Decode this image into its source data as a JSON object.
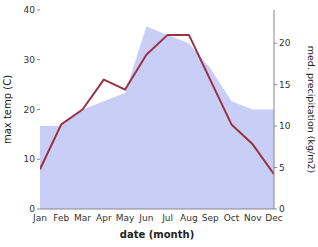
{
  "chart_data": {
    "type": "line",
    "categories": [
      "Jan",
      "Feb",
      "Mar",
      "Apr",
      "May",
      "Jun",
      "Jul",
      "Aug",
      "Sep",
      "Oct",
      "Nov",
      "Dec"
    ],
    "xlabel": "date (month)",
    "ylabel": "max temp (C)",
    "y2label": "med. precipitation (kg/m2)",
    "ylim": [
      0,
      40
    ],
    "yticks": [
      0,
      10,
      20,
      30,
      40
    ],
    "y2lim": [
      0,
      24
    ],
    "y2ticks": [
      0,
      5,
      10,
      15,
      20
    ],
    "grid": false,
    "series": [
      {
        "type": "area",
        "axis": "y2",
        "color": "#c8cef5",
        "values": [
          10,
          10,
          12,
          13,
          14,
          22,
          21,
          20,
          17,
          13,
          12,
          12
        ]
      },
      {
        "type": "line",
        "color": "#993344",
        "values": [
          8,
          17,
          20,
          26,
          24,
          31,
          35,
          35,
          26,
          17,
          13,
          7
        ]
      }
    ]
  }
}
